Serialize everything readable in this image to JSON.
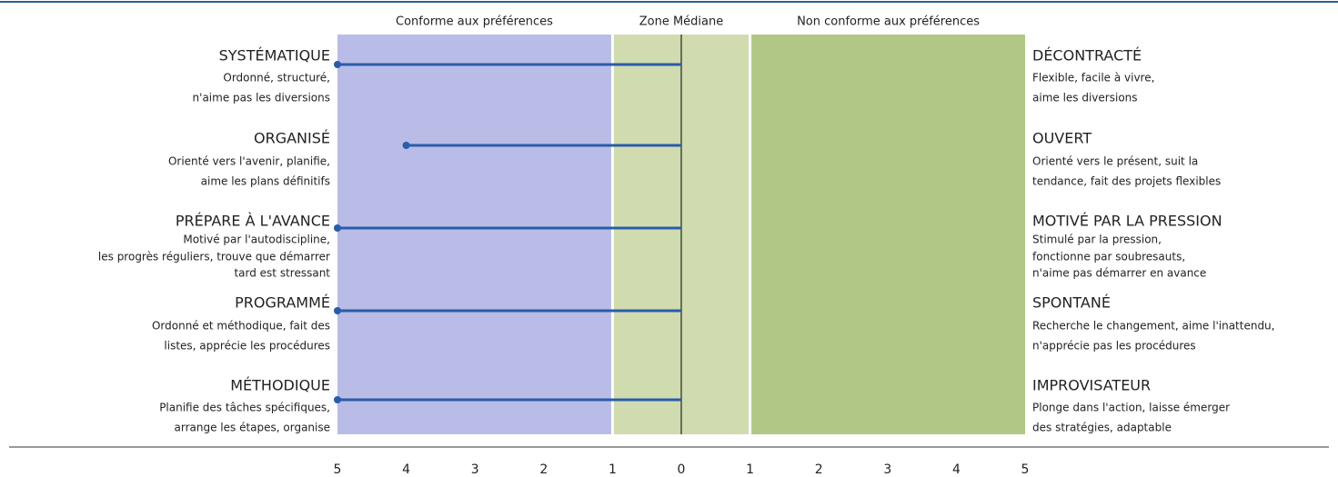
{
  "chart_data": {
    "type": "bar",
    "xlim": [
      -5,
      5
    ],
    "xticks": [
      {
        "value": -5,
        "label": "5"
      },
      {
        "value": -4,
        "label": "4"
      },
      {
        "value": -3,
        "label": "3"
      },
      {
        "value": -2,
        "label": "2"
      },
      {
        "value": -1,
        "label": "1"
      },
      0,
      1,
      2,
      3,
      4,
      5
    ],
    "zones": [
      {
        "label": "Conforme aux préférences",
        "from": -5,
        "to": -1,
        "color": "#b8bce6"
      },
      {
        "label": "Zone Médiane",
        "from": -1,
        "to": 1,
        "color": "#d0dbb0"
      },
      {
        "label": "Non conforme aux préférences",
        "from": 1,
        "to": 5,
        "color": "#b1c785"
      }
    ],
    "color": "#2a5caa",
    "facets": [
      {
        "left": "SYSTÉMATIQUE",
        "left_desc": [
          "Ordonné, structuré,",
          "n'aime pas les diversions"
        ],
        "right": "DÉCONTRACTÉ",
        "right_desc": [
          "Flexible, facile à vivre,",
          "aime les diversions"
        ]
      },
      {
        "left": "ORGANISÉ",
        "left_desc": [
          "Orienté vers l'avenir, planifie,",
          "aime les plans définitifs"
        ],
        "right": "OUVERT",
        "right_desc": [
          "Orienté vers le présent, suit la",
          "tendance, fait des projets flexibles"
        ]
      },
      {
        "left": "PRÉPARE À L'AVANCE",
        "left_desc": [
          "Motivé par l'autodiscipline,",
          "les progrès réguliers, trouve que démarrer",
          "tard est stressant"
        ],
        "right": "MOTIVÉ PAR LA PRESSION",
        "right_desc": [
          "Stimulé par la pression,",
          "fonctionne par soubresauts,",
          "n'aime pas démarrer en avance"
        ]
      },
      {
        "left": "PROGRAMMÉ",
        "left_desc": [
          "Ordonné et méthodique, fait des",
          "listes, apprécie les procédures"
        ],
        "right": "SPONTANÉ",
        "right_desc": [
          "Recherche le changement, aime l'inattendu,",
          "n'apprécie pas les procédures"
        ]
      },
      {
        "left": "MÉTHODIQUE",
        "left_desc": [
          "Planifie des tâches spécifiques,",
          "arrange les étapes, organise"
        ],
        "right": "IMPROVISATEUR",
        "right_desc": [
          "Plonge dans l'action, laisse émerger",
          "des stratégies, adaptable"
        ]
      }
    ],
    "values": [
      -5,
      -4,
      -5,
      -5,
      -5
    ]
  }
}
